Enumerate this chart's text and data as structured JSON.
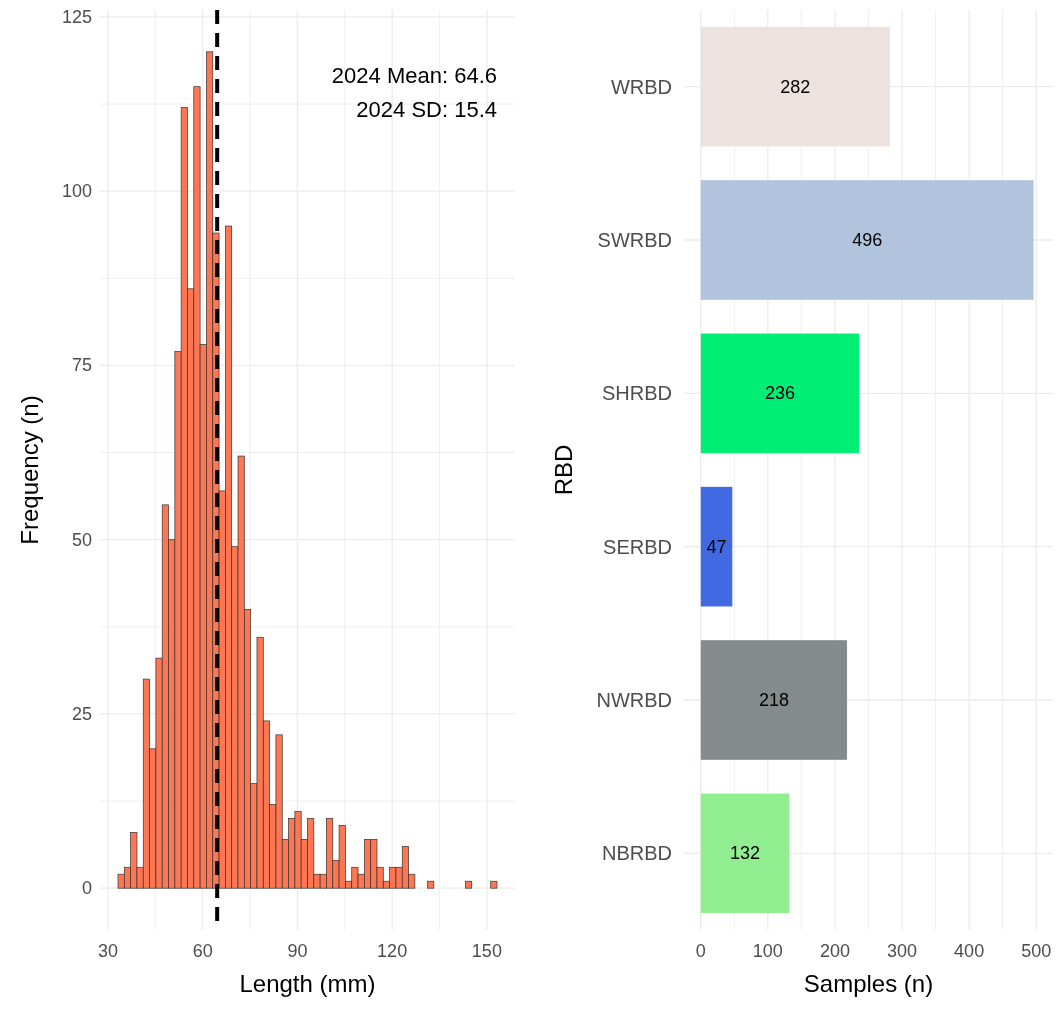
{
  "chart_data": [
    {
      "type": "histogram",
      "xlabel": "Length (mm)",
      "ylabel": "Frequency (n)",
      "color": "#ff7653",
      "bins": [
        33.2,
        35.2,
        37.2,
        39.2,
        41.2,
        43.2,
        45.2,
        47.2,
        49.2,
        51.2,
        53.2,
        55.2,
        57.2,
        59.2,
        61.2,
        63.2,
        65.2,
        67.2,
        69.2,
        71.2,
        73.2,
        75.2,
        77.2,
        79.2,
        81.2,
        83.2,
        85.2,
        87.2,
        89.2,
        91.2,
        93.2,
        95.2,
        97.2,
        99.2,
        101.2,
        103.2,
        105.2,
        107.2,
        109.2,
        111.2,
        113.2,
        115.2,
        117.2,
        119.2,
        121.2,
        123.2,
        125.2,
        127.2,
        129.2,
        131.2,
        133.2,
        135.2,
        137.2,
        139.2,
        141.2,
        143.2,
        145.2,
        147.2,
        149.2,
        151.2,
        153.2
      ],
      "values": [
        2,
        3,
        8,
        3,
        30,
        20,
        33,
        55,
        50,
        77,
        112,
        86,
        115,
        78,
        120,
        94,
        57,
        95,
        49,
        62,
        40,
        15,
        36,
        24,
        12,
        22,
        7,
        10,
        11,
        7,
        10,
        2,
        2,
        10,
        4,
        9,
        1,
        3,
        2,
        7,
        7,
        3,
        1,
        3,
        3,
        6,
        2,
        0,
        0,
        1,
        0,
        0,
        0,
        0,
        0,
        1,
        0,
        0,
        0,
        1
      ],
      "xlim": [
        27.5,
        158.9
      ],
      "xticks": [
        30,
        60,
        90,
        120,
        150
      ],
      "ylim": [
        -6,
        126
      ],
      "yticks": [
        0,
        25,
        50,
        75,
        100,
        125
      ],
      "grid": true,
      "ref_lines": [
        {
          "axis": "x",
          "value": 64.6,
          "color": "#000000",
          "line_style": "dashed"
        }
      ],
      "annotations": [
        "2024 Mean: 64.6",
        "2024 SD: 15.4"
      ]
    },
    {
      "type": "bar",
      "orientation": "horizontal",
      "xlabel": "Samples (n)",
      "ylabel": "RBD",
      "categories": [
        "WRBD",
        "SWRBD",
        "SHRBD",
        "SERBD",
        "NWRBD",
        "NBRBD"
      ],
      "values": [
        282,
        496,
        236,
        47,
        218,
        132
      ],
      "colors": [
        "#ede3de",
        "#b0c4de",
        "#00ee76",
        "#4169e1",
        "#838b8b",
        "#90ee90"
      ],
      "xlim": [
        -25,
        525
      ],
      "xticks": [
        0,
        100,
        200,
        300,
        400,
        500
      ],
      "grid": true,
      "data_labels": true
    }
  ]
}
